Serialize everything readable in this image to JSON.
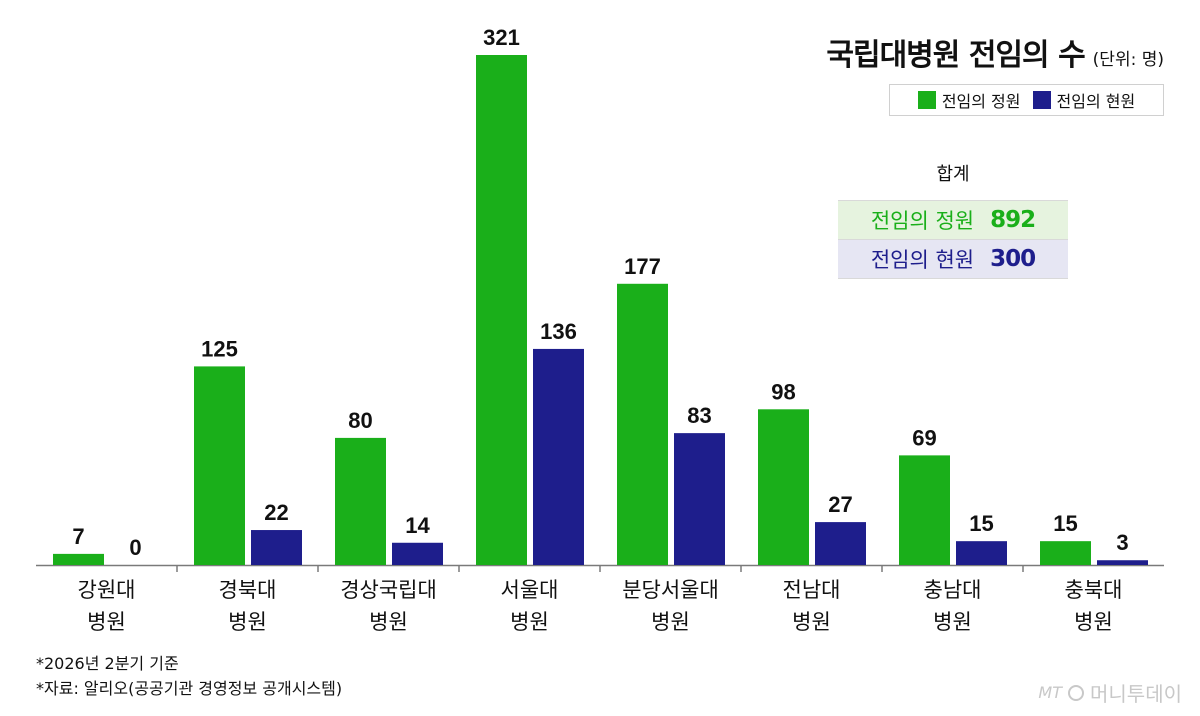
{
  "title": "국립대병원 전임의 수",
  "unit": "(단위: 명)",
  "legend": [
    {
      "label": "전임의 정원",
      "color": "#1aaf1a"
    },
    {
      "label": "전임의 현원",
      "color": "#1e1e8c"
    }
  ],
  "totals": {
    "header": "합계",
    "positions_label": "전임의 정원",
    "positions_value": "892",
    "current_label": "전임의 현원",
    "current_value": "300"
  },
  "notes": [
    "*2026년 2분기 기준",
    "*자료: 알리오(공공기관 경영정보 공개시스템)"
  ],
  "watermark": {
    "mt": "MT",
    "brand": "머니투데이"
  },
  "chart_data": {
    "type": "bar",
    "categories": [
      "강원대 병원",
      "경북대 병원",
      "경상국립대 병원",
      "서울대 병원",
      "분당서울대 병원",
      "전남대 병원",
      "충남대 병원",
      "충북대 병원"
    ],
    "category_lines": [
      [
        "강원대",
        "병원"
      ],
      [
        "경북대",
        "병원"
      ],
      [
        "경상국립대",
        "병원"
      ],
      [
        "서울대",
        "병원"
      ],
      [
        "분당서울대",
        "병원"
      ],
      [
        "전남대",
        "병원"
      ],
      [
        "충남대",
        "병원"
      ],
      [
        "충북대",
        "병원"
      ]
    ],
    "series": [
      {
        "name": "전임의 정원",
        "color": "#1aaf1a",
        "values": [
          7,
          125,
          80,
          321,
          177,
          98,
          69,
          15
        ]
      },
      {
        "name": "전임의 현원",
        "color": "#1e1e8c",
        "values": [
          0,
          22,
          14,
          136,
          83,
          27,
          15,
          3
        ]
      }
    ],
    "ylim": [
      0,
      321
    ],
    "grid": false,
    "legend_position": "top-right"
  }
}
